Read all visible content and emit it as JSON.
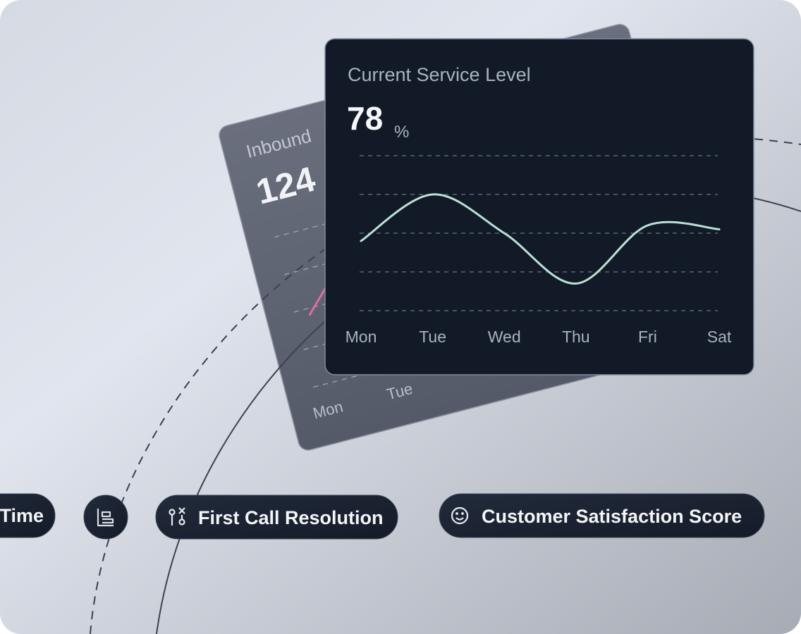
{
  "back_card": {
    "title": "Inbound",
    "value": 124,
    "day_labels": [
      "Mon",
      "Tue"
    ]
  },
  "front_card": {
    "title": "Current Service Level",
    "value": 78,
    "unit": "%"
  },
  "chart_data": {
    "type": "line",
    "categories": [
      "Mon",
      "Tue",
      "Wed",
      "Thu",
      "Fri",
      "Sat"
    ],
    "series": [
      {
        "color": "#b9e2d3",
        "values": [
          1.8,
          3.0,
          2.0,
          0.7,
          2.2,
          2.1
        ]
      }
    ],
    "ylim": [
      0,
      4
    ],
    "yticks": [
      0,
      1,
      2,
      3,
      4
    ],
    "grid": true
  },
  "pills": [
    {
      "label": "Time"
    },
    {
      "label": "First Call Resolution"
    },
    {
      "label": "Customer Satisfaction Score"
    }
  ]
}
